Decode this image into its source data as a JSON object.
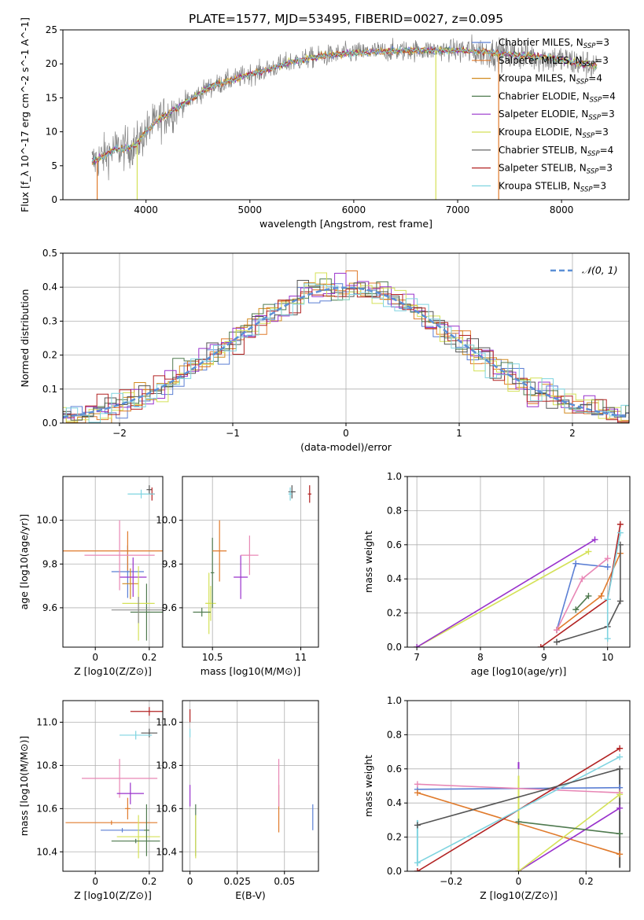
{
  "figure": {
    "title": "PLATE=1577, MJD=53495, FIBERID=0027, z=0.095"
  },
  "chart_data": [
    {
      "id": "spectrum",
      "type": "line",
      "xlabel": "wavelength [Angstrom, rest frame]",
      "ylabel": "Flux [f_λ 10^-17 erg cm^-2 s^-1 A^-1]",
      "xlim": [
        3200,
        8650
      ],
      "ylim": [
        0,
        25
      ],
      "xticks": [
        4000,
        5000,
        6000,
        7000,
        8000
      ],
      "yticks": [
        0,
        5,
        10,
        15,
        20,
        25
      ],
      "legend_position": "top-right",
      "series": [
        {
          "name": "Chabrier MILES, N_SSP=3",
          "color": "#5b7fd4"
        },
        {
          "name": "Salpeter MILES, N_SSP=3",
          "color": "#e07a2b"
        },
        {
          "name": "Kroupa MILES, N_SSP=4",
          "color": "#d28a1e"
        },
        {
          "name": "Chabrier ELODIE, N_SSP=4",
          "color": "#4f7a4f"
        },
        {
          "name": "Salpeter ELODIE, N_SSP=3",
          "color": "#9932cc"
        },
        {
          "name": "Kroupa ELODIE, N_SSP=3",
          "color": "#d4e157"
        },
        {
          "name": "Chabrier STELIB, N_SSP=4",
          "color": "#555555"
        },
        {
          "name": "Salpeter STELIB, N_SSP=3",
          "color": "#b22222"
        },
        {
          "name": "Kroupa STELIB, N_SSP=3",
          "color": "#7fd4e0"
        }
      ],
      "continuum": [
        [
          3480,
          5.5
        ],
        [
          3600,
          6.5
        ],
        [
          3700,
          7.5
        ],
        [
          3800,
          7.5
        ],
        [
          3900,
          8.0
        ],
        [
          4000,
          10.0
        ],
        [
          4100,
          11.5
        ],
        [
          4200,
          12.5
        ],
        [
          4300,
          13.5
        ],
        [
          4400,
          14.5
        ],
        [
          4500,
          15.5
        ],
        [
          4600,
          16.5
        ],
        [
          4700,
          17.0
        ],
        [
          4800,
          17.5
        ],
        [
          4900,
          18.0
        ],
        [
          5000,
          18.5
        ],
        [
          5100,
          18.8
        ],
        [
          5200,
          19.3
        ],
        [
          5300,
          19.8
        ],
        [
          5400,
          20.3
        ],
        [
          5500,
          20.6
        ],
        [
          5600,
          20.9
        ],
        [
          5700,
          21.1
        ],
        [
          5800,
          21.3
        ],
        [
          5900,
          21.5
        ],
        [
          6000,
          21.6
        ],
        [
          6200,
          21.8
        ],
        [
          6400,
          21.9
        ],
        [
          6600,
          22.0
        ],
        [
          6800,
          22.0
        ],
        [
          7000,
          22.0
        ],
        [
          7200,
          21.8
        ],
        [
          7400,
          21.5
        ],
        [
          7600,
          21.3
        ],
        [
          7800,
          21.0
        ],
        [
          8000,
          20.6
        ],
        [
          8200,
          20.0
        ],
        [
          8400,
          19.5
        ]
      ]
    },
    {
      "id": "residuals",
      "type": "area",
      "xlabel": "(data-model)/error",
      "ylabel": "Normed distribution",
      "xlim": [
        -2.5,
        2.5
      ],
      "ylim": [
        0,
        0.5
      ],
      "xticks": [
        -2,
        -1,
        0,
        1,
        2
      ],
      "yticks": [
        0.0,
        0.1,
        0.2,
        0.3,
        0.4,
        0.5
      ],
      "grid": true,
      "legend_position": "top-right",
      "legend": "𝒩(0, 1)"
    },
    {
      "id": "age-vs-Z",
      "type": "scatter",
      "xlabel": "Z [log10(Z/Z⊙)]",
      "ylabel": "age [log10(age/yr)]",
      "xlim": [
        -0.12,
        0.25
      ],
      "ylim": [
        9.42,
        10.2
      ],
      "xticks": [
        0.0,
        0.2
      ],
      "yticks": [
        9.6,
        9.8,
        10.0
      ],
      "grid": true,
      "points": [
        {
          "x": 0.12,
          "y": 9.765,
          "xerr": 0.06,
          "yerr": 0.12,
          "color": "#5b7fd4"
        },
        {
          "x": 0.12,
          "y": 9.86,
          "xerr": 0.27,
          "yerr": 0.09,
          "color": "#e07a2b"
        },
        {
          "x": 0.13,
          "y": 9.71,
          "xerr": 0.03,
          "yerr": 0.07,
          "color": "#d28a1e"
        },
        {
          "x": 0.19,
          "y": 9.58,
          "xerr": 0.06,
          "yerr": 0.13,
          "color": "#4f7a4f"
        },
        {
          "x": 0.14,
          "y": 9.74,
          "xerr": 0.05,
          "yerr": 0.09,
          "color": "#9932cc"
        },
        {
          "x": 0.16,
          "y": 9.62,
          "xerr": 0.06,
          "yerr": 0.17,
          "color": "#d4e157"
        },
        {
          "x": 0.2,
          "y": 10.14,
          "xerr": 0.01,
          "yerr": 0.02,
          "color": "#555555"
        },
        {
          "x": 0.21,
          "y": 10.12,
          "xerr": 0.01,
          "yerr": 0.03,
          "color": "#b22222"
        },
        {
          "x": 0.17,
          "y": 10.12,
          "xerr": 0.05,
          "yerr": 0.02,
          "color": "#7fd4e0"
        },
        {
          "x": 0.09,
          "y": 9.84,
          "xerr": 0.13,
          "yerr": 0.16,
          "color": "#e887b5"
        },
        {
          "x": 0.16,
          "y": 9.59,
          "xerr": 0.1,
          "yerr": 0.06,
          "color": "#8b8b8b"
        }
      ]
    },
    {
      "id": "age-vs-mass",
      "type": "scatter",
      "xlabel": "mass [log10(M/M⊙)]",
      "ylabel": "",
      "xlim": [
        10.33,
        11.1
      ],
      "ylim": [
        9.42,
        10.2
      ],
      "xticks": [
        10.5,
        11.0
      ],
      "yticks": [
        9.6,
        9.8,
        10.0
      ],
      "grid": true,
      "points": [
        {
          "x": 10.49,
          "y": 9.62,
          "xerr": 0.03,
          "yerr": 0.08,
          "color": "#d4e157"
        },
        {
          "x": 10.5,
          "y": 9.76,
          "xerr": 0.01,
          "yerr": 0.16,
          "color": "#4f7a4f"
        },
        {
          "x": 10.48,
          "y": 9.62,
          "xerr": 0.02,
          "yerr": 0.14,
          "color": "#d4e157"
        },
        {
          "x": 10.44,
          "y": 9.58,
          "xerr": 0.05,
          "yerr": 0.02,
          "color": "#4f7a4f"
        },
        {
          "x": 10.54,
          "y": 9.86,
          "xerr": 0.04,
          "yerr": 0.14,
          "color": "#e07a2b"
        },
        {
          "x": 10.66,
          "y": 9.74,
          "xerr": 0.04,
          "yerr": 0.1,
          "color": "#9932cc"
        },
        {
          "x": 10.71,
          "y": 9.84,
          "xerr": 0.05,
          "yerr": 0.09,
          "color": "#e887b5"
        },
        {
          "x": 10.95,
          "y": 10.13,
          "xerr": 0.02,
          "yerr": 0.03,
          "color": "#555555"
        },
        {
          "x": 10.94,
          "y": 10.12,
          "xerr": 0.01,
          "yerr": 0.03,
          "color": "#7fd4e0"
        },
        {
          "x": 11.05,
          "y": 10.12,
          "xerr": 0.01,
          "yerr": 0.04,
          "color": "#b22222"
        }
      ]
    },
    {
      "id": "massweight-vs-age",
      "type": "line",
      "xlabel": "age [log10(age/yr)]",
      "ylabel": "mass weight",
      "xlim": [
        6.85,
        10.35
      ],
      "ylim": [
        0,
        1.0
      ],
      "xticks": [
        7,
        8,
        9,
        10
      ],
      "yticks": [
        0.0,
        0.2,
        0.4,
        0.6,
        0.8,
        1.0
      ],
      "grid": true,
      "series": [
        {
          "color": "#5b7fd4",
          "points": [
            [
              9.2,
              0.1
            ],
            [
              9.5,
              0.49
            ],
            [
              10.0,
              0.47
            ]
          ]
        },
        {
          "color": "#e07a2b",
          "points": [
            [
              9.2,
              0.1
            ],
            [
              9.9,
              0.3
            ],
            [
              10.2,
              0.55
            ]
          ]
        },
        {
          "color": "#d4e157",
          "points": [
            [
              7.0,
              0.0
            ],
            [
              9.7,
              0.56
            ]
          ]
        },
        {
          "color": "#9932cc",
          "points": [
            [
              7.0,
              0.0
            ],
            [
              9.8,
              0.63
            ]
          ]
        },
        {
          "color": "#555555",
          "points": [
            [
              9.2,
              0.03
            ],
            [
              10.0,
              0.12
            ],
            [
              10.2,
              0.27
            ],
            [
              10.2,
              0.6
            ]
          ]
        },
        {
          "color": "#b22222",
          "points": [
            [
              8.95,
              0.0
            ],
            [
              10.0,
              0.28
            ],
            [
              10.2,
              0.72
            ]
          ]
        },
        {
          "color": "#7fd4e0",
          "points": [
            [
              10.0,
              0.05
            ],
            [
              10.0,
              0.28
            ],
            [
              10.2,
              0.67
            ]
          ]
        },
        {
          "color": "#e887b5",
          "points": [
            [
              9.2,
              0.1
            ],
            [
              9.6,
              0.4
            ],
            [
              10.0,
              0.52
            ]
          ]
        },
        {
          "color": "#4f7a4f",
          "points": [
            [
              9.5,
              0.22
            ],
            [
              9.7,
              0.3
            ]
          ]
        }
      ]
    },
    {
      "id": "mass-vs-Z",
      "type": "scatter",
      "xlabel": "Z [log10(Z/Z⊙)]",
      "ylabel": "mass [log10(M/M⊙)]",
      "xlim": [
        -0.12,
        0.25
      ],
      "ylim": [
        10.31,
        11.1
      ],
      "xticks": [
        0.0,
        0.2
      ],
      "yticks": [
        10.4,
        10.6,
        10.8,
        11.0
      ],
      "grid": true,
      "points": [
        {
          "x": 0.2,
          "y": 11.05,
          "xerr": 0.07,
          "yerr": 0.02,
          "color": "#b22222"
        },
        {
          "x": 0.2,
          "y": 10.95,
          "xerr": 0.03,
          "yerr": 0.02,
          "color": "#555555"
        },
        {
          "x": 0.15,
          "y": 10.94,
          "xerr": 0.06,
          "yerr": 0.02,
          "color": "#7fd4e0"
        },
        {
          "x": 0.09,
          "y": 10.74,
          "xerr": 0.14,
          "yerr": 0.09,
          "color": "#e887b5"
        },
        {
          "x": 0.13,
          "y": 10.67,
          "xerr": 0.05,
          "yerr": 0.05,
          "color": "#9932cc"
        },
        {
          "x": 0.12,
          "y": 10.6,
          "xerr": 0.01,
          "yerr": 0.05,
          "color": "#e07a2b"
        },
        {
          "x": 0.1,
          "y": 10.5,
          "xerr": 0.08,
          "yerr": 0.01,
          "color": "#5b7fd4"
        },
        {
          "x": 0.06,
          "y": 10.535,
          "xerr": 0.17,
          "yerr": 0.01,
          "color": "#e07a2b"
        },
        {
          "x": 0.16,
          "y": 10.47,
          "xerr": 0.08,
          "yerr": 0.1,
          "color": "#d4e157"
        },
        {
          "x": 0.15,
          "y": 10.45,
          "xerr": 0.09,
          "yerr": 0.01,
          "color": "#4f7a4f"
        },
        {
          "x": 0.19,
          "y": 10.5,
          "xerr": 0.01,
          "yerr": 0.12,
          "color": "#4f7a4f"
        }
      ]
    },
    {
      "id": "mass-vs-EBV",
      "type": "scatter",
      "xlabel": "E(B-V)",
      "ylabel": "",
      "xlim": [
        -0.004,
        0.068
      ],
      "ylim": [
        10.31,
        11.1
      ],
      "xticks": [
        0.0,
        0.025,
        0.05
      ],
      "yticks": [
        10.4,
        10.6,
        10.8,
        11.0
      ],
      "grid": true,
      "points": [
        {
          "x": 0.0,
          "y": 11.03,
          "yerr": 0.03,
          "color": "#b22222"
        },
        {
          "x": 0.0,
          "y": 10.95,
          "yerr": 0.02,
          "color": "#7fd4e0"
        },
        {
          "x": 0.0,
          "y": 10.66,
          "yerr": 0.05,
          "color": "#9932cc"
        },
        {
          "x": 0.003,
          "y": 10.5,
          "yerr": 0.12,
          "color": "#4f7a4f"
        },
        {
          "x": 0.003,
          "y": 10.47,
          "yerr": 0.1,
          "color": "#d4e157"
        },
        {
          "x": 0.047,
          "y": 10.6,
          "yerr": 0.11,
          "color": "#e07a2b"
        },
        {
          "x": 0.047,
          "y": 10.72,
          "yerr": 0.11,
          "color": "#e887b5"
        },
        {
          "x": 0.065,
          "y": 10.56,
          "yerr": 0.06,
          "color": "#5b7fd4"
        }
      ]
    },
    {
      "id": "massweight-vs-Z",
      "type": "line",
      "xlabel": "Z [log10(Z/Z⊙)]",
      "ylabel": "mass weight",
      "xlim": [
        -0.33,
        0.33
      ],
      "ylim": [
        0,
        1.0
      ],
      "xticks": [
        -0.2,
        0.0,
        0.2
      ],
      "yticks": [
        0.0,
        0.2,
        0.4,
        0.6,
        0.8,
        1.0
      ],
      "grid": true,
      "series": [
        {
          "color": "#5b7fd4",
          "points": [
            [
              -0.3,
              0.48
            ],
            [
              0.3,
              0.49
            ]
          ]
        },
        {
          "color": "#e07a2b",
          "points": [
            [
              -0.3,
              0.46
            ],
            [
              0.3,
              0.1
            ]
          ]
        },
        {
          "color": "#e887b5",
          "points": [
            [
              -0.3,
              0.51
            ],
            [
              0.3,
              0.46
            ]
          ]
        },
        {
          "color": "#b22222",
          "points": [
            [
              -0.3,
              0.0
            ],
            [
              0.3,
              0.72
            ]
          ]
        },
        {
          "color": "#7fd4e0",
          "points": [
            [
              -0.3,
              0.05
            ],
            [
              0.3,
              0.67
            ]
          ]
        },
        {
          "color": "#555555",
          "points": [
            [
              -0.3,
              0.27
            ],
            [
              0.3,
              0.6
            ]
          ]
        },
        {
          "color": "#9932cc",
          "points": [
            [
              0.0,
              0.0
            ],
            [
              0.3,
              0.37
            ]
          ]
        },
        {
          "color": "#d4e157",
          "points": [
            [
              0.0,
              0.0
            ],
            [
              0.3,
              0.45
            ]
          ]
        },
        {
          "color": "#4f7a4f",
          "points": [
            [
              0.0,
              0.29
            ],
            [
              0.3,
              0.22
            ]
          ]
        }
      ],
      "vertical_markers": [
        {
          "x": -0.3,
          "color": "#7fd4e0",
          "y0": 0.03,
          "y1": 0.3
        },
        {
          "x": 0.0,
          "color": "#d4e157",
          "y0": 0.0,
          "y1": 0.56
        },
        {
          "x": 0.0,
          "color": "#9932cc",
          "y0": 0.6,
          "y1": 0.64
        },
        {
          "x": 0.3,
          "color": "#555555",
          "y0": 0.02,
          "y1": 0.6
        }
      ]
    }
  ]
}
